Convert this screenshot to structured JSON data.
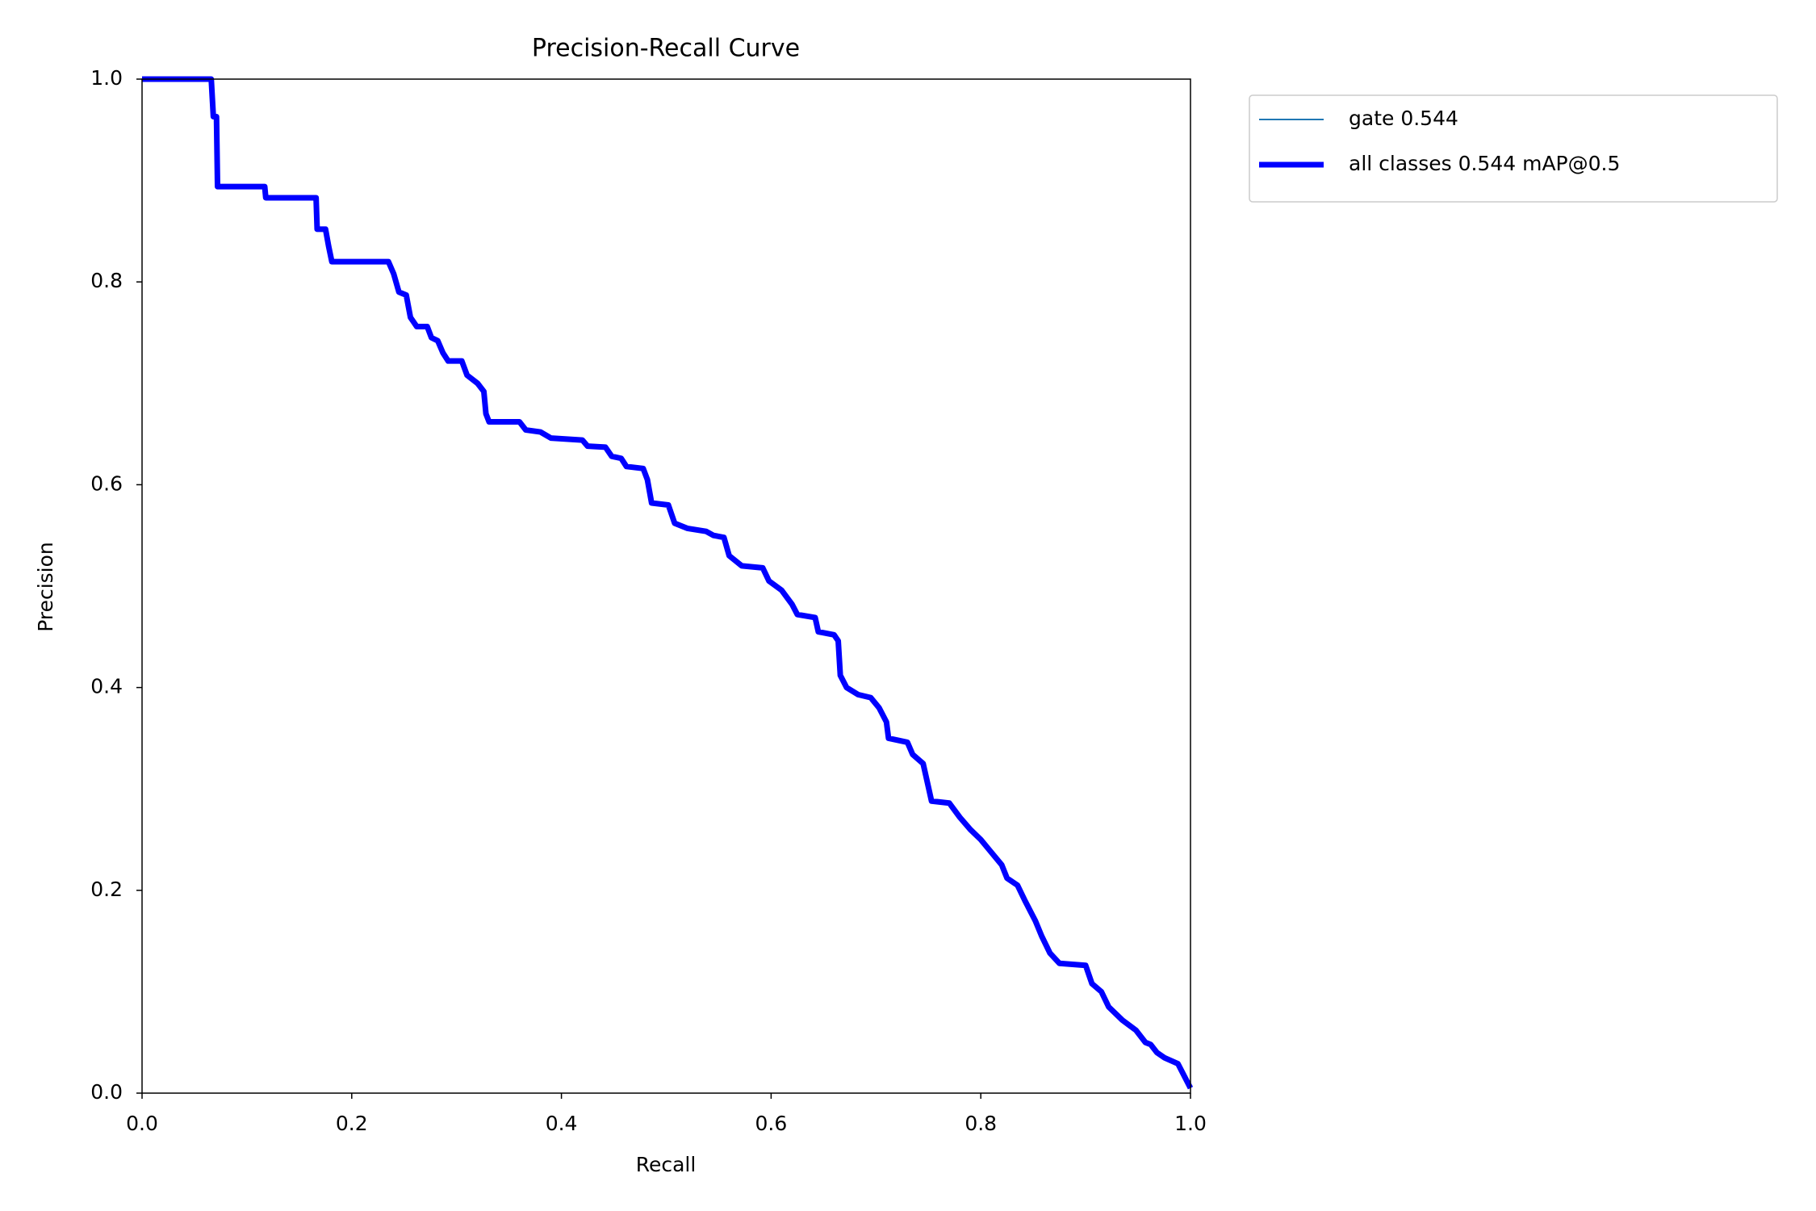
{
  "chart_data": {
    "type": "line",
    "title": "Precision-Recall Curve",
    "x_label": "Recall",
    "y_label": "Precision",
    "xlim": [
      0,
      1
    ],
    "ylim": [
      0,
      1
    ],
    "xticks": [
      {
        "value": 0,
        "label": "0.0"
      },
      0.2,
      0.4,
      0.6,
      0.8,
      {
        "value": 1,
        "label": "1.0"
      }
    ],
    "yticks": [
      {
        "value": 0,
        "label": "0.0"
      },
      0.2,
      0.4,
      0.6,
      0.8,
      {
        "value": 1,
        "label": "1.0"
      }
    ],
    "legend_position": "outside-upper-right",
    "x": [
      0,
      0.066,
      0.068,
      0.071,
      0.072,
      0.117,
      0.118,
      0.166,
      0.167,
      0.175,
      0.178,
      0.181,
      0.235,
      0.24,
      0.245,
      0.252,
      0.256,
      0.262,
      0.272,
      0.276,
      0.282,
      0.287,
      0.292,
      0.305,
      0.31,
      0.32,
      0.326,
      0.328,
      0.331,
      0.36,
      0.366,
      0.38,
      0.39,
      0.42,
      0.425,
      0.442,
      0.448,
      0.457,
      0.462,
      0.478,
      0.482,
      0.486,
      0.502,
      0.508,
      0.52,
      0.538,
      0.545,
      0.555,
      0.56,
      0.572,
      0.592,
      0.598,
      0.61,
      0.62,
      0.625,
      0.642,
      0.645,
      0.66,
      0.664,
      0.666,
      0.672,
      0.683,
      0.695,
      0.703,
      0.71,
      0.712,
      0.73,
      0.735,
      0.745,
      0.75,
      0.753,
      0.77,
      0.78,
      0.79,
      0.8,
      0.808,
      0.82,
      0.825,
      0.835,
      0.842,
      0.852,
      0.858,
      0.866,
      0.875,
      0.9,
      0.906,
      0.915,
      0.922,
      0.935,
      0.948,
      0.957,
      0.962,
      0.968,
      0.975,
      0.988,
      1.0
    ],
    "series": [
      {
        "name": "gate 0.544",
        "color": "#1f77b4",
        "linewidth": 2,
        "values": [
          1,
          1,
          0.963,
          0.963,
          0.894,
          0.894,
          0.883,
          0.883,
          0.852,
          0.852,
          0.835,
          0.82,
          0.82,
          0.808,
          0.79,
          0.787,
          0.765,
          0.756,
          0.756,
          0.745,
          0.742,
          0.73,
          0.722,
          0.722,
          0.708,
          0.7,
          0.692,
          0.67,
          0.662,
          0.662,
          0.654,
          0.652,
          0.646,
          0.644,
          0.638,
          0.637,
          0.628,
          0.626,
          0.618,
          0.616,
          0.605,
          0.582,
          0.58,
          0.562,
          0.557,
          0.554,
          0.55,
          0.548,
          0.53,
          0.52,
          0.518,
          0.505,
          0.496,
          0.482,
          0.472,
          0.469,
          0.455,
          0.452,
          0.446,
          0.412,
          0.4,
          0.393,
          0.39,
          0.38,
          0.366,
          0.35,
          0.346,
          0.334,
          0.325,
          0.302,
          0.288,
          0.286,
          0.272,
          0.26,
          0.25,
          0.24,
          0.225,
          0.212,
          0.205,
          0.19,
          0.17,
          0.155,
          0.138,
          0.128,
          0.126,
          0.108,
          0.1,
          0.085,
          0.072,
          0.062,
          0.05,
          0.048,
          0.04,
          0.035,
          0.029,
          0.005
        ]
      },
      {
        "name": "all classes 0.544 mAP@0.5",
        "color": "#0000ff",
        "linewidth": 7,
        "values": [
          1,
          1,
          0.963,
          0.963,
          0.894,
          0.894,
          0.883,
          0.883,
          0.852,
          0.852,
          0.835,
          0.82,
          0.82,
          0.808,
          0.79,
          0.787,
          0.765,
          0.756,
          0.756,
          0.745,
          0.742,
          0.73,
          0.722,
          0.722,
          0.708,
          0.7,
          0.692,
          0.67,
          0.662,
          0.662,
          0.654,
          0.652,
          0.646,
          0.644,
          0.638,
          0.637,
          0.628,
          0.626,
          0.618,
          0.616,
          0.605,
          0.582,
          0.58,
          0.562,
          0.557,
          0.554,
          0.55,
          0.548,
          0.53,
          0.52,
          0.518,
          0.505,
          0.496,
          0.482,
          0.472,
          0.469,
          0.455,
          0.452,
          0.446,
          0.412,
          0.4,
          0.393,
          0.39,
          0.38,
          0.366,
          0.35,
          0.346,
          0.334,
          0.325,
          0.302,
          0.288,
          0.286,
          0.272,
          0.26,
          0.25,
          0.24,
          0.225,
          0.212,
          0.205,
          0.19,
          0.17,
          0.155,
          0.138,
          0.128,
          0.126,
          0.108,
          0.1,
          0.085,
          0.072,
          0.062,
          0.05,
          0.048,
          0.04,
          0.035,
          0.029,
          0.005
        ]
      }
    ]
  }
}
